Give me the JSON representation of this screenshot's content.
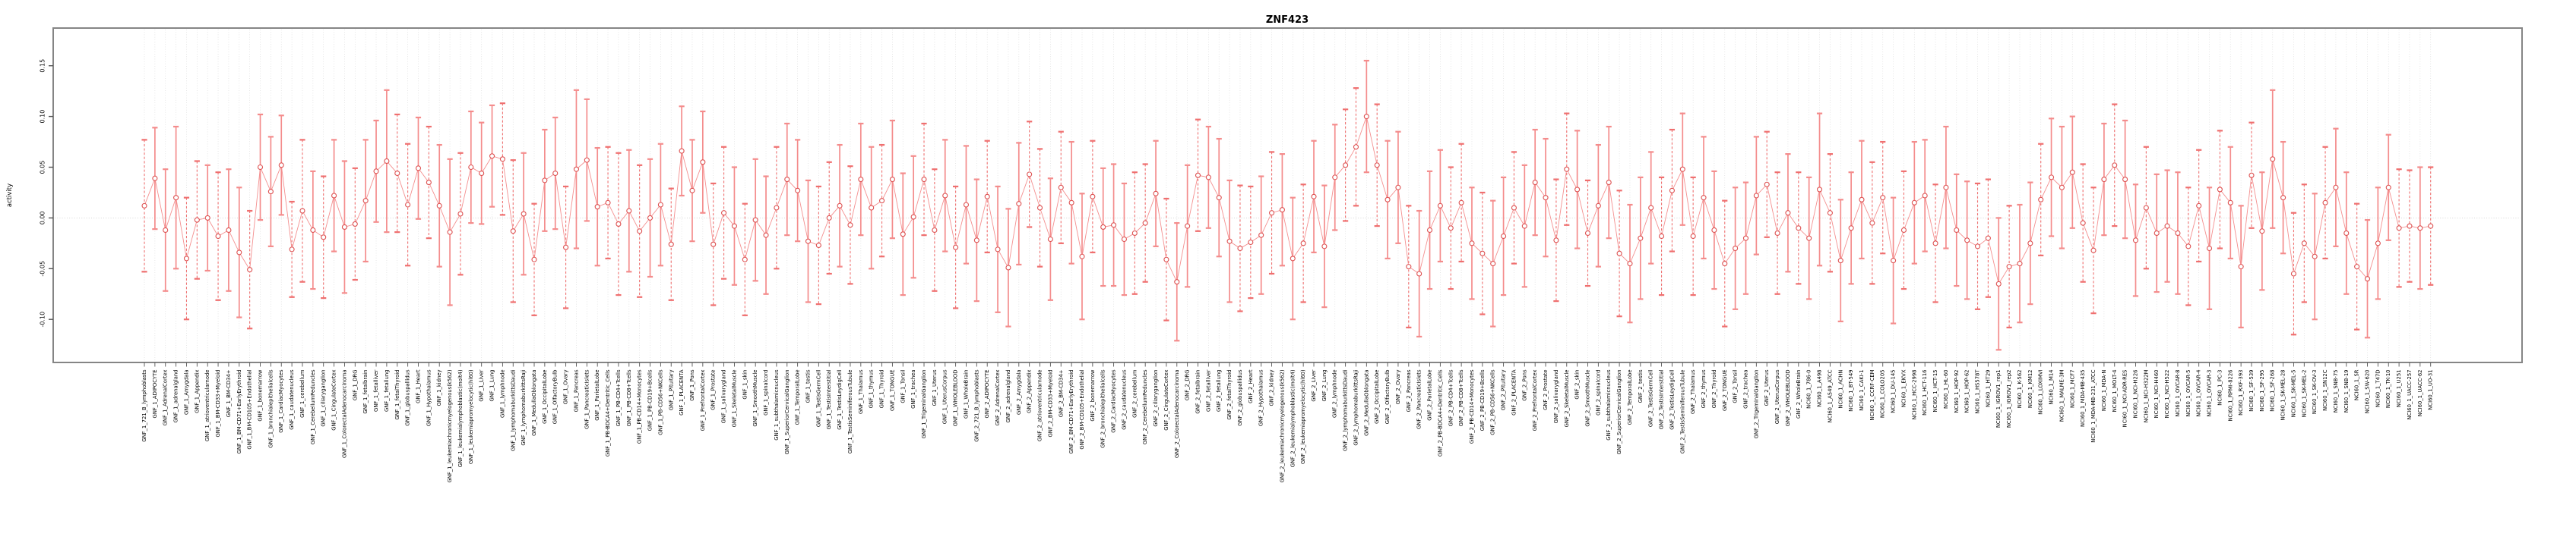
{
  "chart_data": {
    "type": "scatter",
    "title": "ZNF423",
    "xlabel": "",
    "ylabel": "activity",
    "grid": "dotted vertical gridline per category, dotted horizontal line at 0",
    "legend_position": "none",
    "marker": "open-circle",
    "error_bars": "symmetric, capped; mix of solid and dashed stems",
    "ylim": [
      -0.143,
      0.187
    ],
    "yticks": [
      0.15,
      0.1,
      0.05,
      0.0,
      -0.05,
      -0.1
    ],
    "ytick_labels": [
      "0.15",
      "0.10",
      "0.05",
      "0.00",
      "-0.05",
      "-0.10"
    ],
    "colors": {
      "bar_solid": "#f48c8c",
      "bar_dashed": "#ef6f6f",
      "series_line": "#f49090",
      "marker_stroke": "#dd5050",
      "gridline": "#dcdcdc",
      "zero_line": "#c8c8c8",
      "plot_border": "#858585",
      "tick": "#555555",
      "text": "#000000"
    },
    "categories": [
      "GNF_1_721_B_lymphoblasts",
      "GNF_1_ADIPOCYTE",
      "GNF_1_AdrenalCortex",
      "GNF_1_adrenalgland",
      "GNF_1_Amygdala",
      "GNF_1_Appendix",
      "GNF_1_atrioventricularnode",
      "GNF_1_BM-CD33+Myeloid",
      "GNF_1_BM-CD34+",
      "GNF_1_BM-CD71+EarlyErythroid",
      "GNF_1_BM-CD105+Endothelial",
      "GNF_1_bonemarrow",
      "GNF_1_bronchialepithelialcells",
      "GNF_1_CardiacMyocytes",
      "GNF_1_caudatenucleus",
      "GNF_1_cerebellum",
      "GNF_1_CerebellumPeduncles",
      "GNF_1_ciliaryganglion",
      "GNF_1_CingulateCortex",
      "GNF_1_ColorectalAdenocarcinoma",
      "GNF_1_DRG",
      "GNF_1_fetalbrain",
      "GNF_1_fetalliver",
      "GNF_1_fetallung",
      "GNF_1_fetalThyroid",
      "GNF_1_globuspallidus",
      "GNF_1_Heart",
      "GNF_1_Hypothalamus",
      "GNF_1_kidney",
      "GNF_1_leukemiachronicmyelogenous(k562)",
      "GNF_1_leukemialymphoblastic(molt4)",
      "GNF_1_leukemiapromyelocytic(hl60)",
      "GNF_1_Liver",
      "GNF_1_Lung",
      "GNF_1_lymphnode",
      "GNF_1_lymphomaburkittsDaudi",
      "GNF_1_lymphomaburkittsRaji",
      "GNF_1_MedullaOblongata",
      "GNF_1_OccipitalLobe",
      "GNF_1_OlfactoryBulb",
      "GNF_1_Ovary",
      "GNF_1_Pancreas",
      "GNF_1_PancreaticIslets",
      "GNF_1_ParietalLobe",
      "GNF_1_PB-BDCA4+Dentritic_Cells",
      "GNF_1_PB-CD4+Tcells",
      "GNF_1_PB-CD8+Tcells",
      "GNF_1_PB-CD14+Monocytes",
      "GNF_1_PB-CD19+Bcells",
      "GNF_1_PB-CD56+NKCells",
      "GNF_1_Pituitary",
      "GNF_1_PLACENTA",
      "GNF_1_Pons",
      "GNF_1_PrefrontalCortex",
      "GNF_1_Prostate",
      "GNF_1_salivarygland",
      "GNF_1_SkeletalMuscle",
      "GNF_1_skin",
      "GNF_1_SmoothMuscle",
      "GNF_1_spinalcord",
      "GNF_1_subthalamicnucleus",
      "GNF_1_SuperiorCervicalGanglion",
      "GNF_1_TemporalLobe",
      "GNF_1_testis",
      "GNF_1_TestisGermCell",
      "GNF_1_TestisInterstitial",
      "GNF_1_TestisLeydigCell",
      "GNF_1_TestisSeminiferousTubule",
      "GNF_1_Thalamus",
      "GNF_1_thymus",
      "GNF_1_Thyroid",
      "GNF_1_TONGUE",
      "GNF_1_Tonsil",
      "GNF_1_trachea",
      "GNF_1_TrigeminalGanglion",
      "GNF_1_Uterus",
      "GNF_1_UterusCorpus",
      "GNF_1_WHOLEBLOOD",
      "GNF_1_WholeBrain",
      "GNF_2_721_B_lymphoblasts",
      "GNF_2_ADIPOCYTE",
      "GNF_2_AdrenalCortex",
      "GNF_2_adrenalgland",
      "GNF_2_Amygdala",
      "GNF_2_Appendix",
      "GNF_2_atrioventricularnode",
      "GNF_2_BM-CD33+Myeloid",
      "GNF_2_BM-CD34+",
      "GNF_2_BM-CD71+EarlyErythroid",
      "GNF_2_BM-CD105+Endothelial",
      "GNF_2_bonemarrow",
      "GNF_2_bronchialepithelialcells",
      "GNF_2_CardiacMyocytes",
      "GNF_2_caudatenucleus",
      "GNF_2_cerebellum",
      "GNF_2_CerebellumPeduncles",
      "GNF_2_ciliaryganglion",
      "GNF_2_CingulateCortex",
      "GNF_2_ColorectalAdenocarcinoma",
      "GNF_2_DRG",
      "GNF_2_fetalbrain",
      "GNF_2_fetalliver",
      "GNF_2_fetallung",
      "GNF_2_fetalThyroid",
      "GNF_2_globuspallidus",
      "GNF_2_Heart",
      "GNF_2_Hypothalamus",
      "GNF_2_kidney",
      "GNF_2_leukemiachronicmyelogenous(k562)",
      "GNF_2_leukemialymphoblastic(molt4)",
      "GNF_2_leukemiapromyelocytic(hl60)",
      "GNF_2_Liver",
      "GNF_2_Lung",
      "GNF_2_lymphnode",
      "GNF_2_lymphomaburkittsDaudi",
      "GNF_2_lymphomaburkittsRaji",
      "GNF_2_MedullaOblongata",
      "GNF_2_OccipitalLobe",
      "GNF_2_OlfactoryBulb",
      "GNF_2_Ovary",
      "GNF_2_Pancreas",
      "GNF_2_PancreaticIslets",
      "GNF_2_ParietalLobe",
      "GNF_2_PB-BDCA4+Dentritic_Cells",
      "GNF_2_PB-CD4+Tcells",
      "GNF_2_PB-CD8+Tcells",
      "GNF_2_PB-CD14+Monocytes",
      "GNF_2_PB-CD19+Bcells",
      "GNF_2_PB-CD56+NKCells",
      "GNF_2_Pituitary",
      "GNF_2_PLACENTA",
      "GNF_2_Pons",
      "GNF_2_PrefrontalCortex",
      "GNF_2_Prostate",
      "GNF_2_salivarygland",
      "GNF_2_SkeletalMuscle",
      "GNF_2_skin",
      "GNF_2_SmoothMuscle",
      "GNF_2_spinalcord",
      "GNF_2_subthalamicnucleus",
      "GNF_2_SuperiorCervicalGanglion",
      "GNF_2_TemporalLobe",
      "GNF_2_testis",
      "GNF_2_TestisGermCell",
      "GNF_2_TestisInterstitial",
      "GNF_2_TestisLeydigCell",
      "GNF_2_TestisSeminiferousTubule",
      "GNF_2_Thalamus",
      "GNF_2_thymus",
      "GNF_2_Thyroid",
      "GNF_2_TONGUE",
      "GNF_2_Tonsil",
      "GNF_2_trachea",
      "GNF_2_TrigeminalGanglion",
      "GNF_2_Uterus",
      "GNF_2_UterusCorpus",
      "GNF_2_WHOLEBLOOD",
      "GNF_2_WholeBrain",
      "NCI60_1_786-0",
      "NCI60_1_A498",
      "NCI60_1_A549_ATCC",
      "NCI60_1_ACHN",
      "NCI60_1_BT-549",
      "NCI60_1_CAKI-1",
      "NCI60_1_CCRF-CEM",
      "NCI60_1_COLO205",
      "NCI60_1_DU-145",
      "NCI60_1_EKVX",
      "NCI60_1_HCC-2998",
      "NCI60_1_HCT-116",
      "NCI60_1_HCT-15",
      "NCI60_1_HL-60",
      "NCI60_1_HOP-92",
      "NCI60_1_HOP-62",
      "NCI60_1_HS578T",
      "NCI60_1_HT29",
      "NCI60_1_IGROV1_rep1",
      "NCI60_1_IGROV1_rep2",
      "NCI60_1_K-562",
      "NCI60_1_KM12",
      "NCI60_1_LOXIMVI",
      "NCI60_1_M14",
      "NCI60_1_MALME-3M",
      "NCI60_1_MCF7",
      "NCI60_1_MDA-MB-435",
      "NCI60_1_MDA-MB-231_ATCC",
      "NCI60_1_MDA-N",
      "NCI60_1_MOLT-4",
      "NCI60_1_NCI-ADR-RES",
      "NCI60_1_NCI-H226",
      "NCI60_1_NCI-H322M",
      "NCI60_1_NCI-H460",
      "NCI60_1_NCI-H522",
      "NCI60_1_OVCAR-8",
      "NCI60_1_OVCAR-5",
      "NCI60_1_OVCAR-4",
      "NCI60_1_OVCAR-3",
      "NCI60_1_PC-3",
      "NCI60_1_RPMI-8226",
      "NCI60_1_RXF-393",
      "NCI60_1_SF-539",
      "NCI60_1_SF-295",
      "NCI60_1_SF-268",
      "NCI60_1_SK-MEL-28",
      "NCI60_1_SK-MEL-5",
      "NCI60_1_SK-MEL-2",
      "NCI60_1_SK-OV-3",
      "NCI60_1_SN12C",
      "NCI60_1_SNB-75",
      "NCI60_1_SNB-19",
      "NCI60_1_SR",
      "NCI60_1_SW-620",
      "NCI60_1_T47D",
      "NCI60_1_TK-10",
      "NCI60_1_U251",
      "NCI60_1_UACC-257",
      "NCI60_1_UACC-62",
      "NCI60_1_UO-31"
    ],
    "values": [
      0.012,
      0.039,
      -0.012,
      0.02,
      -0.04,
      -0.002,
      0.0,
      -0.018,
      -0.012,
      -0.034,
      -0.051,
      0.05,
      0.026,
      0.052,
      -0.031,
      0.007,
      -0.012,
      -0.019,
      0.022,
      -0.009,
      -0.006,
      0.017,
      0.046,
      0.056,
      0.044,
      0.013,
      0.049,
      0.035,
      0.012,
      -0.014,
      0.004,
      0.05,
      0.044,
      0.061,
      0.058,
      -0.013,
      0.004,
      -0.041,
      0.037,
      0.044,
      -0.029,
      0.048,
      0.057,
      0.011,
      0.015,
      -0.006,
      0.007,
      -0.013,
      0.0,
      0.013,
      -0.026,
      0.066,
      0.027,
      0.055,
      -0.026,
      0.005,
      -0.008,
      -0.041,
      -0.002,
      -0.017,
      0.01,
      0.038,
      0.027,
      -0.023,
      -0.027,
      0.0,
      0.012,
      -0.007,
      0.038,
      0.01,
      0.017,
      0.038,
      -0.016,
      0.001,
      0.038,
      -0.012,
      0.022,
      -0.029,
      0.013,
      -0.022,
      0.021,
      -0.031,
      -0.049,
      0.014,
      0.043,
      0.01,
      -0.021,
      0.03,
      0.015,
      -0.038,
      0.021,
      -0.009,
      -0.007,
      -0.021,
      -0.015,
      -0.005,
      0.024,
      -0.041,
      -0.063,
      -0.008,
      0.042,
      0.04,
      0.02,
      -0.023,
      -0.03,
      -0.024,
      -0.017,
      0.005,
      0.008,
      -0.04,
      -0.025,
      0.021,
      -0.028,
      0.04,
      0.052,
      0.07,
      0.1,
      0.052,
      0.018,
      0.03,
      -0.048,
      -0.055,
      -0.012,
      0.012,
      -0.01,
      0.015,
      -0.025,
      -0.035,
      -0.045,
      -0.018,
      0.01,
      -0.008,
      0.035,
      0.02,
      -0.022,
      0.048,
      0.028,
      -0.015,
      0.012,
      0.035,
      -0.035,
      -0.045,
      -0.02,
      0.01,
      -0.018,
      0.027,
      0.048,
      -0.018,
      0.02,
      -0.012,
      -0.045,
      -0.03,
      -0.02,
      0.022,
      0.033,
      -0.015,
      0.005,
      -0.01,
      -0.02,
      0.028,
      0.005,
      -0.042,
      -0.01,
      0.018,
      -0.005,
      0.02,
      -0.042,
      -0.012,
      0.015,
      0.022,
      -0.025,
      0.03,
      -0.012,
      -0.022,
      -0.028,
      -0.02,
      -0.065,
      -0.048,
      -0.045,
      -0.025,
      0.018,
      0.04,
      0.03,
      0.045,
      -0.005,
      -0.032,
      0.038,
      0.052,
      0.038,
      -0.022,
      0.01,
      -0.015,
      -0.008,
      -0.015,
      -0.028,
      0.012,
      -0.03,
      0.028,
      0.015,
      -0.048,
      0.042,
      -0.013,
      0.058,
      0.02,
      -0.055,
      -0.025,
      -0.038,
      0.015,
      0.03,
      -0.015,
      -0.048,
      -0.06,
      -0.025,
      0.03,
      -0.01,
      -0.008,
      -0.01,
      -0.008
    ],
    "errors": [
      0.065,
      0.05,
      0.06,
      0.07,
      0.06,
      0.058,
      0.052,
      0.063,
      0.06,
      0.064,
      0.058,
      0.052,
      0.054,
      0.049,
      0.047,
      0.07,
      0.058,
      0.06,
      0.055,
      0.065,
      0.055,
      0.06,
      0.05,
      0.07,
      0.058,
      0.06,
      0.05,
      0.055,
      0.06,
      0.072,
      0.06,
      0.055,
      0.05,
      0.05,
      0.055,
      0.07,
      0.06,
      0.055,
      0.05,
      0.055,
      0.06,
      0.078,
      0.06,
      0.058,
      0.055,
      0.07,
      0.06,
      0.065,
      0.058,
      0.06,
      0.055,
      0.044,
      0.05,
      0.05,
      0.06,
      0.065,
      0.058,
      0.055,
      0.06,
      0.058,
      0.06,
      0.055,
      0.05,
      0.06,
      0.058,
      0.055,
      0.06,
      0.058,
      0.055,
      0.06,
      0.055,
      0.058,
      0.06,
      0.06,
      0.055,
      0.06,
      0.055,
      0.06,
      0.058,
      0.06,
      0.055,
      0.062,
      0.058,
      0.06,
      0.052,
      0.058,
      0.06,
      0.055,
      0.06,
      0.062,
      0.055,
      0.058,
      0.06,
      0.055,
      0.06,
      0.058,
      0.052,
      0.06,
      0.058,
      0.06,
      0.055,
      0.05,
      0.058,
      0.06,
      0.062,
      0.055,
      0.058,
      0.06,
      0.055,
      0.06,
      0.058,
      0.055,
      0.06,
      0.052,
      0.055,
      0.058,
      0.055,
      0.06,
      0.058,
      0.055,
      0.06,
      0.062,
      0.058,
      0.055,
      0.06,
      0.058,
      0.055,
      0.06,
      0.062,
      0.058,
      0.055,
      0.06,
      0.052,
      0.058,
      0.06,
      0.055,
      0.058,
      0.052,
      0.06,
      0.055,
      0.062,
      0.058,
      0.06,
      0.055,
      0.058,
      0.06,
      0.055,
      0.058,
      0.06,
      0.058,
      0.062,
      0.06,
      0.055,
      0.058,
      0.052,
      0.06,
      0.058,
      0.055,
      0.06,
      0.075,
      0.058,
      0.06,
      0.055,
      0.058,
      0.06,
      0.055,
      0.062,
      0.058,
      0.06,
      0.055,
      0.058,
      0.06,
      0.055,
      0.058,
      0.062,
      0.058,
      0.065,
      0.06,
      0.058,
      0.06,
      0.055,
      0.058,
      0.06,
      0.055,
      0.058,
      0.062,
      0.055,
      0.06,
      0.058,
      0.055,
      0.06,
      0.058,
      0.055,
      0.06,
      0.058,
      0.055,
      0.06,
      0.058,
      0.055,
      0.06,
      0.052,
      0.058,
      0.068,
      0.055,
      0.06,
      0.058,
      0.062,
      0.055,
      0.058,
      0.06,
      0.062,
      0.058,
      0.055,
      0.052,
      0.058,
      0.055,
      0.06,
      0.058
    ],
    "dashed": "10001101001000110100100011010010001101001000110100100011010010001101001000110100100011010010001101001000110100100011010010001101001000110100100011010010001101001000110100100011010010001101001000110100100011010010001101"
  }
}
